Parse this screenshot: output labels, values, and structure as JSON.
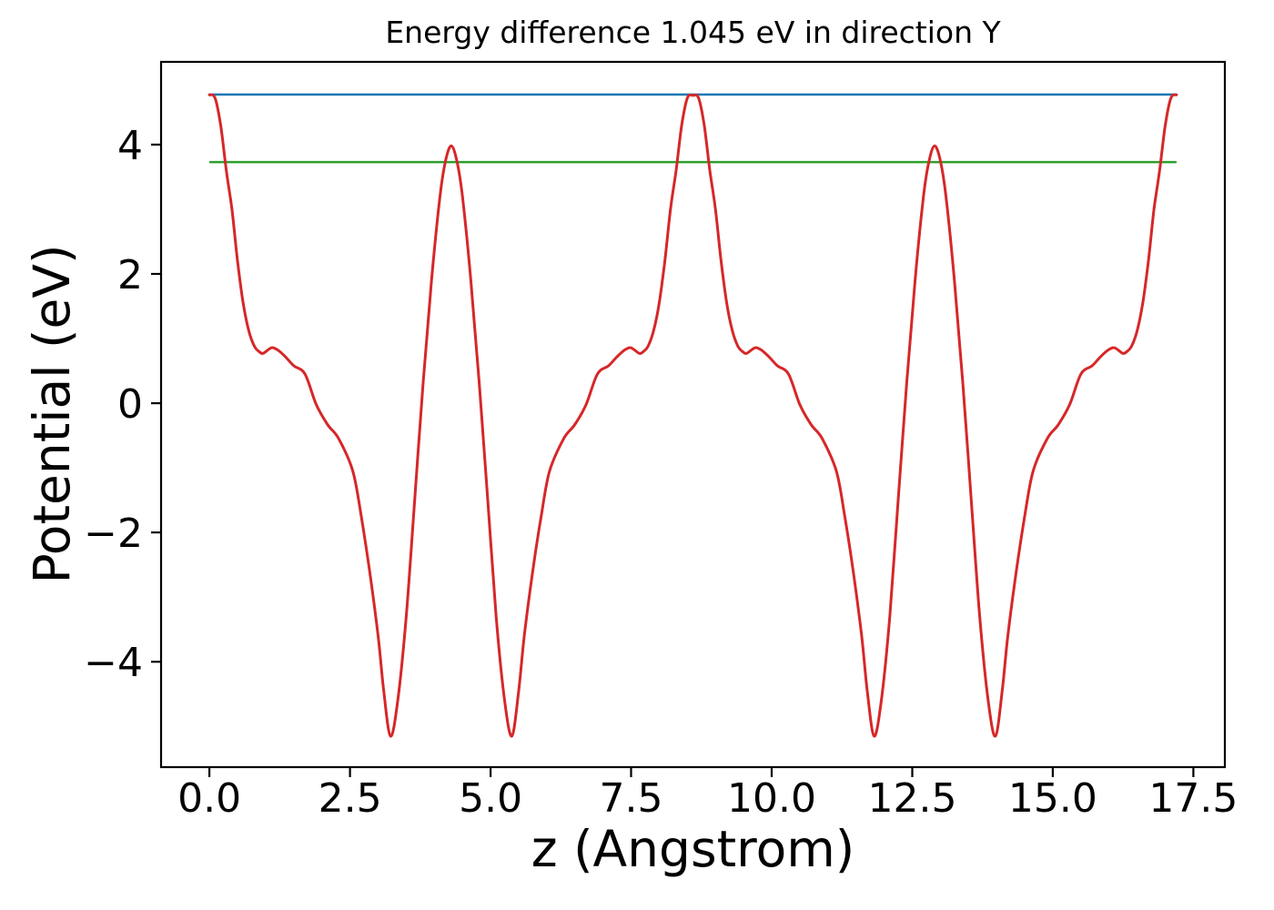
{
  "chart_data": {
    "type": "line",
    "title": "Energy difference 1.045 eV in direction Y",
    "xlabel": "z (Angstrom)",
    "ylabel": "Potential (eV)",
    "energy_difference_eV": 1.045,
    "direction": "Y",
    "xlim": [
      -0.86,
      18.06
    ],
    "ylim": [
      -5.63,
      5.28
    ],
    "x_ticks": [
      0.0,
      2.5,
      5.0,
      7.5,
      10.0,
      12.5,
      15.0,
      17.5
    ],
    "x_tick_labels": [
      "0.0",
      "2.5",
      "5.0",
      "7.5",
      "10.0",
      "12.5",
      "15.0",
      "17.5"
    ],
    "y_ticks": [
      4,
      2,
      0,
      -2,
      -4
    ],
    "y_tick_labels": [
      "4",
      "2",
      "0",
      "−2",
      "−4"
    ],
    "grid": false,
    "legend_position": "none",
    "frame_color": "#000000",
    "series": [
      {
        "name": "planar-average-potential",
        "type": "line",
        "color": "#d62728",
        "line_width": 3,
        "points": [
          [
            0.0,
            4.77
          ],
          [
            0.1,
            4.72
          ],
          [
            0.2,
            4.3
          ],
          [
            0.3,
            3.6
          ],
          [
            0.4,
            3.0
          ],
          [
            0.5,
            2.2
          ],
          [
            0.6,
            1.55
          ],
          [
            0.7,
            1.12
          ],
          [
            0.8,
            0.88
          ],
          [
            0.88,
            0.8
          ],
          [
            0.95,
            0.77
          ],
          [
            1.05,
            0.83
          ],
          [
            1.12,
            0.86
          ],
          [
            1.22,
            0.82
          ],
          [
            1.35,
            0.72
          ],
          [
            1.5,
            0.58
          ],
          [
            1.7,
            0.45
          ],
          [
            1.9,
            -0.02
          ],
          [
            2.1,
            -0.33
          ],
          [
            2.3,
            -0.55
          ],
          [
            2.55,
            -1.05
          ],
          [
            2.7,
            -1.75
          ],
          [
            2.85,
            -2.6
          ],
          [
            3.0,
            -3.6
          ],
          [
            3.1,
            -4.45
          ],
          [
            3.22,
            -5.15
          ],
          [
            3.35,
            -4.6
          ],
          [
            3.5,
            -3.3
          ],
          [
            3.65,
            -1.5
          ],
          [
            3.8,
            0.3
          ],
          [
            3.95,
            1.9
          ],
          [
            4.1,
            3.2
          ],
          [
            4.2,
            3.75
          ],
          [
            4.3,
            3.98
          ],
          [
            4.4,
            3.75
          ],
          [
            4.5,
            3.2
          ],
          [
            4.65,
            1.9
          ],
          [
            4.8,
            0.3
          ],
          [
            4.95,
            -1.5
          ],
          [
            5.1,
            -3.3
          ],
          [
            5.25,
            -4.6
          ],
          [
            5.38,
            -5.15
          ],
          [
            5.5,
            -4.45
          ],
          [
            5.6,
            -3.6
          ],
          [
            5.75,
            -2.6
          ],
          [
            5.9,
            -1.75
          ],
          [
            6.05,
            -1.05
          ],
          [
            6.3,
            -0.55
          ],
          [
            6.5,
            -0.33
          ],
          [
            6.7,
            -0.02
          ],
          [
            6.9,
            0.45
          ],
          [
            7.1,
            0.58
          ],
          [
            7.25,
            0.72
          ],
          [
            7.38,
            0.82
          ],
          [
            7.48,
            0.86
          ],
          [
            7.55,
            0.83
          ],
          [
            7.65,
            0.77
          ],
          [
            7.72,
            0.8
          ],
          [
            7.8,
            0.88
          ],
          [
            7.9,
            1.12
          ],
          [
            8.0,
            1.55
          ],
          [
            8.1,
            2.2
          ],
          [
            8.2,
            3.0
          ],
          [
            8.3,
            3.6
          ],
          [
            8.4,
            4.3
          ],
          [
            8.5,
            4.72
          ],
          [
            8.6,
            4.76
          ],
          [
            8.7,
            4.72
          ],
          [
            8.8,
            4.3
          ],
          [
            8.9,
            3.6
          ],
          [
            9.0,
            3.0
          ],
          [
            9.1,
            2.2
          ],
          [
            9.2,
            1.55
          ],
          [
            9.3,
            1.12
          ],
          [
            9.4,
            0.88
          ],
          [
            9.48,
            0.8
          ],
          [
            9.55,
            0.77
          ],
          [
            9.65,
            0.83
          ],
          [
            9.72,
            0.86
          ],
          [
            9.82,
            0.82
          ],
          [
            9.95,
            0.72
          ],
          [
            10.1,
            0.58
          ],
          [
            10.3,
            0.45
          ],
          [
            10.5,
            -0.02
          ],
          [
            10.7,
            -0.33
          ],
          [
            10.9,
            -0.55
          ],
          [
            11.15,
            -1.05
          ],
          [
            11.3,
            -1.75
          ],
          [
            11.45,
            -2.6
          ],
          [
            11.6,
            -3.6
          ],
          [
            11.7,
            -4.45
          ],
          [
            11.82,
            -5.15
          ],
          [
            11.95,
            -4.6
          ],
          [
            12.1,
            -3.3
          ],
          [
            12.25,
            -1.5
          ],
          [
            12.4,
            0.3
          ],
          [
            12.55,
            1.9
          ],
          [
            12.7,
            3.2
          ],
          [
            12.8,
            3.75
          ],
          [
            12.9,
            3.98
          ],
          [
            13.0,
            3.75
          ],
          [
            13.1,
            3.2
          ],
          [
            13.25,
            1.9
          ],
          [
            13.4,
            0.3
          ],
          [
            13.55,
            -1.5
          ],
          [
            13.7,
            -3.3
          ],
          [
            13.85,
            -4.6
          ],
          [
            13.98,
            -5.15
          ],
          [
            14.1,
            -4.45
          ],
          [
            14.2,
            -3.6
          ],
          [
            14.35,
            -2.6
          ],
          [
            14.5,
            -1.75
          ],
          [
            14.65,
            -1.05
          ],
          [
            14.9,
            -0.55
          ],
          [
            15.1,
            -0.33
          ],
          [
            15.3,
            -0.02
          ],
          [
            15.5,
            0.45
          ],
          [
            15.7,
            0.58
          ],
          [
            15.85,
            0.72
          ],
          [
            15.98,
            0.82
          ],
          [
            16.08,
            0.86
          ],
          [
            16.15,
            0.83
          ],
          [
            16.25,
            0.77
          ],
          [
            16.32,
            0.8
          ],
          [
            16.4,
            0.88
          ],
          [
            16.5,
            1.12
          ],
          [
            16.6,
            1.55
          ],
          [
            16.7,
            2.2
          ],
          [
            16.8,
            3.0
          ],
          [
            16.9,
            3.6
          ],
          [
            17.0,
            4.3
          ],
          [
            17.1,
            4.72
          ],
          [
            17.2,
            4.77
          ]
        ]
      },
      {
        "name": "vacuum-level-high",
        "type": "hline",
        "color": "#1f77b4",
        "line_width": 2.5,
        "y": 4.775,
        "x_range": [
          0,
          17.2
        ]
      },
      {
        "name": "vacuum-level-low",
        "type": "hline",
        "color": "#2ca02c",
        "line_width": 2.5,
        "y": 3.73,
        "x_range": [
          0,
          17.2
        ]
      }
    ]
  }
}
